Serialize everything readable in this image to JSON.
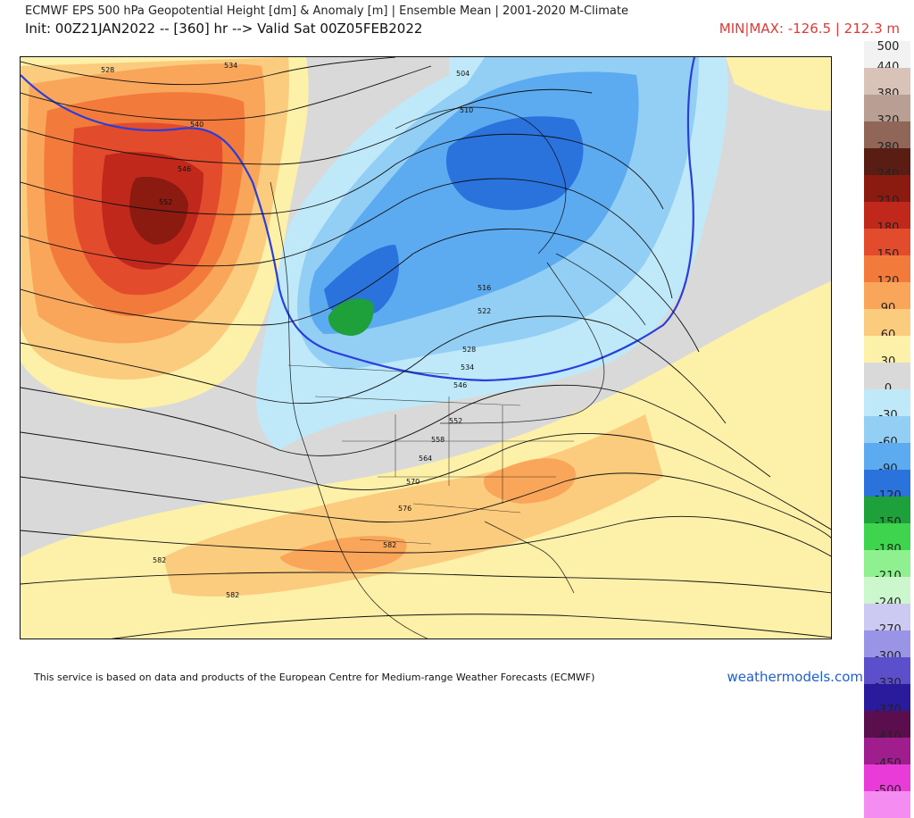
{
  "header": {
    "title": "ECMWF EPS 500 hPa Geopotential Height [dm] & Anomaly [m] | Ensemble Mean | 2001-2020 M-Climate",
    "subtitle": "Init: 00Z21JAN2022 -- [360] hr --> Valid Sat 00Z05FEB2022",
    "minmax": "MIN|MAX: -126.5 | 212.3 m"
  },
  "legend": {
    "top_value": "500",
    "entries": [
      {
        "label": "440",
        "color": "#f2f2f2"
      },
      {
        "label": "380",
        "color": "#d9c3b8"
      },
      {
        "label": "320",
        "color": "#b99e93"
      },
      {
        "label": "280",
        "color": "#8f6658"
      },
      {
        "label": "240",
        "color": "#5a1d14"
      },
      {
        "label": "210",
        "color": "#8b1a10"
      },
      {
        "label": "180",
        "color": "#c1281c"
      },
      {
        "label": "150",
        "color": "#e24c2c"
      },
      {
        "label": "120",
        "color": "#f27a3b"
      },
      {
        "label": "90",
        "color": "#f9a55a"
      },
      {
        "label": "60",
        "color": "#fbcb7e"
      },
      {
        "label": "30",
        "color": "#fdf0a8"
      },
      {
        "label": "0",
        "color": "#d9d9d9"
      },
      {
        "label": "-30",
        "color": "#bfe9f9"
      },
      {
        "label": "-60",
        "color": "#93cff5"
      },
      {
        "label": "-90",
        "color": "#5caaf0"
      },
      {
        "label": "-120",
        "color": "#2a73dd"
      },
      {
        "label": "-150",
        "color": "#1ea03a"
      },
      {
        "label": "-180",
        "color": "#3ed44e"
      },
      {
        "label": "-210",
        "color": "#8ef08f"
      },
      {
        "label": "-240",
        "color": "#ccf6cc"
      },
      {
        "label": "-270",
        "color": "#cccaf2"
      },
      {
        "label": "-300",
        "color": "#9a94e6"
      },
      {
        "label": "-330",
        "color": "#5c4fcb"
      },
      {
        "label": "-370",
        "color": "#2a1a9c"
      },
      {
        "label": "-410",
        "color": "#5a0e4e"
      },
      {
        "label": "-450",
        "color": "#a01d8e"
      },
      {
        "label": "-500",
        "color": "#e83bd8"
      },
      {
        "label": "",
        "color": "#f58cf2"
      }
    ]
  },
  "map": {
    "contour_labels": [
      "528",
      "534",
      "540",
      "546",
      "552",
      "504",
      "510",
      "516",
      "522",
      "528",
      "534",
      "546",
      "552",
      "558",
      "564",
      "570",
      "576",
      "582",
      "582",
      "582"
    ]
  },
  "footer": {
    "attribution": "This service is based on data and products of the European Centre for Medium-range Weather Forecasts (ECMWF)",
    "site": "weathermodels.com"
  }
}
